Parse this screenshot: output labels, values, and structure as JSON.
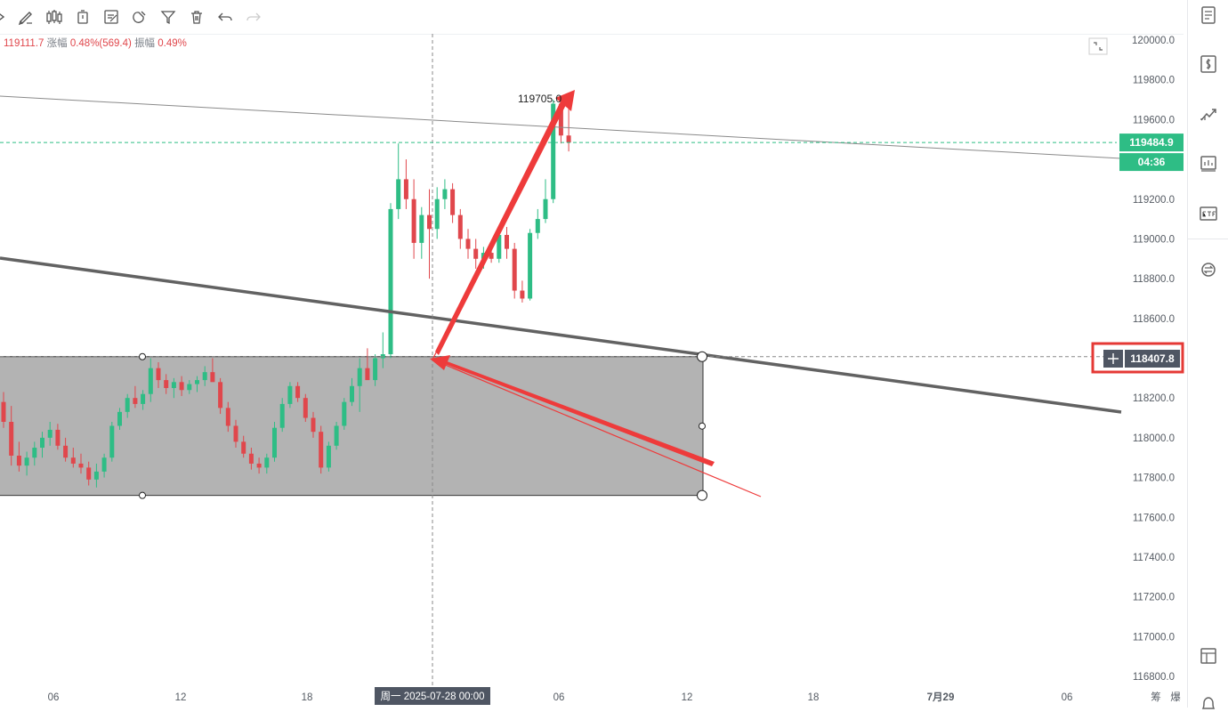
{
  "toolbar": {
    "tools": [
      "cursor-tool-icon",
      "pencil-icon",
      "candlestick-icon",
      "timer-icon",
      "edit-note-icon",
      "magnet-icon",
      "filter-icon",
      "trash-icon",
      "undo-icon",
      "redo-icon"
    ]
  },
  "infoline": {
    "close": "119111.7",
    "change_label": "涨幅",
    "change_value": "0.48%(569.4)",
    "amplitude_label": "振幅",
    "amplitude_value": "0.49%"
  },
  "colors": {
    "up": "#2ebd85",
    "down": "#e0474c",
    "accent_box": "#e53935"
  },
  "chart_data": {
    "type": "candlestick",
    "y_ticks": [
      "120000.0",
      "119800.0",
      "119600.0",
      "119400.0",
      "119200.0",
      "119000.0",
      "118800.0",
      "118600.0",
      "118400.0",
      "118200.0",
      "118000.0",
      "117800.0",
      "117600.0",
      "117400.0",
      "117200.0",
      "117000.0",
      "116800.0"
    ],
    "x_ticks": [
      "06",
      "12",
      "18",
      "06",
      "12",
      "18",
      "7月29",
      "06"
    ],
    "ylim": [
      116750,
      120050
    ],
    "crosshair_time_label": "周一 2025-07-28 00:00",
    "current_price": "119484.9",
    "countdown": "04:36",
    "crosshair_price": "118407.8",
    "high_annotation": "119705.0",
    "extra_axis_chars": [
      "筹",
      "爆"
    ],
    "zone_box": {
      "top": 118407.8,
      "bottom": 117710
    },
    "candles": [
      {
        "o": 118180,
        "h": 118230,
        "l": 118050,
        "c": 118080
      },
      {
        "o": 118080,
        "h": 118160,
        "l": 117860,
        "c": 117910
      },
      {
        "o": 117910,
        "h": 117980,
        "l": 117830,
        "c": 117860
      },
      {
        "o": 117860,
        "h": 117930,
        "l": 117810,
        "c": 117900
      },
      {
        "o": 117900,
        "h": 117980,
        "l": 117860,
        "c": 117950
      },
      {
        "o": 117950,
        "h": 118030,
        "l": 117900,
        "c": 118000
      },
      {
        "o": 118000,
        "h": 118080,
        "l": 117960,
        "c": 118040
      },
      {
        "o": 118040,
        "h": 118070,
        "l": 117940,
        "c": 117960
      },
      {
        "o": 117960,
        "h": 118000,
        "l": 117880,
        "c": 117900
      },
      {
        "o": 117900,
        "h": 117950,
        "l": 117850,
        "c": 117870
      },
      {
        "o": 117870,
        "h": 117920,
        "l": 117820,
        "c": 117850
      },
      {
        "o": 117850,
        "h": 117880,
        "l": 117760,
        "c": 117790
      },
      {
        "o": 117790,
        "h": 117870,
        "l": 117750,
        "c": 117830
      },
      {
        "o": 117830,
        "h": 117920,
        "l": 117800,
        "c": 117900
      },
      {
        "o": 117900,
        "h": 118080,
        "l": 117880,
        "c": 118060
      },
      {
        "o": 118060,
        "h": 118150,
        "l": 118040,
        "c": 118130
      },
      {
        "o": 118130,
        "h": 118220,
        "l": 118100,
        "c": 118200
      },
      {
        "o": 118200,
        "h": 118260,
        "l": 118150,
        "c": 118170
      },
      {
        "o": 118170,
        "h": 118240,
        "l": 118140,
        "c": 118220
      },
      {
        "o": 118220,
        "h": 118400,
        "l": 118180,
        "c": 118350
      },
      {
        "o": 118350,
        "h": 118380,
        "l": 118250,
        "c": 118290
      },
      {
        "o": 118290,
        "h": 118320,
        "l": 118220,
        "c": 118250
      },
      {
        "o": 118250,
        "h": 118300,
        "l": 118200,
        "c": 118280
      },
      {
        "o": 118280,
        "h": 118310,
        "l": 118210,
        "c": 118240
      },
      {
        "o": 118240,
        "h": 118290,
        "l": 118220,
        "c": 118270
      },
      {
        "o": 118270,
        "h": 118310,
        "l": 118230,
        "c": 118290
      },
      {
        "o": 118290,
        "h": 118360,
        "l": 118260,
        "c": 118330
      },
      {
        "o": 118330,
        "h": 118400,
        "l": 118300,
        "c": 118280
      },
      {
        "o": 118280,
        "h": 118300,
        "l": 118120,
        "c": 118150
      },
      {
        "o": 118150,
        "h": 118180,
        "l": 118030,
        "c": 118060
      },
      {
        "o": 118060,
        "h": 118090,
        "l": 117950,
        "c": 117980
      },
      {
        "o": 117980,
        "h": 118010,
        "l": 117900,
        "c": 117920
      },
      {
        "o": 117920,
        "h": 117950,
        "l": 117840,
        "c": 117870
      },
      {
        "o": 117870,
        "h": 117900,
        "l": 117820,
        "c": 117850
      },
      {
        "o": 117850,
        "h": 117920,
        "l": 117820,
        "c": 117900
      },
      {
        "o": 117900,
        "h": 118080,
        "l": 117880,
        "c": 118050
      },
      {
        "o": 118050,
        "h": 118200,
        "l": 118030,
        "c": 118170
      },
      {
        "o": 118170,
        "h": 118280,
        "l": 118150,
        "c": 118260
      },
      {
        "o": 118260,
        "h": 118280,
        "l": 118180,
        "c": 118200
      },
      {
        "o": 118200,
        "h": 118220,
        "l": 118080,
        "c": 118100
      },
      {
        "o": 118100,
        "h": 118130,
        "l": 118000,
        "c": 118030
      },
      {
        "o": 118030,
        "h": 118060,
        "l": 117820,
        "c": 117850
      },
      {
        "o": 117850,
        "h": 117980,
        "l": 117830,
        "c": 117960
      },
      {
        "o": 117960,
        "h": 118080,
        "l": 117940,
        "c": 118060
      },
      {
        "o": 118060,
        "h": 118200,
        "l": 118040,
        "c": 118180
      },
      {
        "o": 118180,
        "h": 118300,
        "l": 118160,
        "c": 118260
      },
      {
        "o": 118260,
        "h": 118400,
        "l": 118130,
        "c": 118350
      },
      {
        "o": 118350,
        "h": 118450,
        "l": 118300,
        "c": 118290
      },
      {
        "o": 118290,
        "h": 118420,
        "l": 118260,
        "c": 118400
      },
      {
        "o": 118400,
        "h": 118530,
        "l": 118350,
        "c": 118420
      },
      {
        "o": 118420,
        "h": 119180,
        "l": 118400,
        "c": 119150
      },
      {
        "o": 119150,
        "h": 119480,
        "l": 119100,
        "c": 119300
      },
      {
        "o": 119300,
        "h": 119400,
        "l": 119150,
        "c": 119200
      },
      {
        "o": 119200,
        "h": 119300,
        "l": 118900,
        "c": 118980
      },
      {
        "o": 118980,
        "h": 119160,
        "l": 118900,
        "c": 119120
      },
      {
        "o": 119120,
        "h": 119250,
        "l": 118800,
        "c": 119050
      },
      {
        "o": 119050,
        "h": 119260,
        "l": 119000,
        "c": 119200
      },
      {
        "o": 119200,
        "h": 119300,
        "l": 119150,
        "c": 119250
      },
      {
        "o": 119250,
        "h": 119280,
        "l": 119080,
        "c": 119120
      },
      {
        "o": 119120,
        "h": 119150,
        "l": 118950,
        "c": 119000
      },
      {
        "o": 119000,
        "h": 119050,
        "l": 118900,
        "c": 118950
      },
      {
        "o": 118950,
        "h": 119000,
        "l": 118850,
        "c": 118900
      },
      {
        "o": 118900,
        "h": 118960,
        "l": 118850,
        "c": 118930
      },
      {
        "o": 118930,
        "h": 118980,
        "l": 118880,
        "c": 118900
      },
      {
        "o": 118900,
        "h": 119050,
        "l": 118880,
        "c": 119020
      },
      {
        "o": 119020,
        "h": 119060,
        "l": 118900,
        "c": 118950
      },
      {
        "o": 118950,
        "h": 118980,
        "l": 118700,
        "c": 118740
      },
      {
        "o": 118740,
        "h": 118790,
        "l": 118680,
        "c": 118700
      },
      {
        "o": 118700,
        "h": 119050,
        "l": 118690,
        "c": 119030
      },
      {
        "o": 119030,
        "h": 119150,
        "l": 119000,
        "c": 119100
      },
      {
        "o": 119100,
        "h": 119300,
        "l": 119080,
        "c": 119200
      },
      {
        "o": 119200,
        "h": 119700,
        "l": 119180,
        "c": 119680
      },
      {
        "o": 119680,
        "h": 119705,
        "l": 119480,
        "c": 119520
      },
      {
        "o": 119520,
        "h": 119720,
        "l": 119440,
        "c": 119484.9
      }
    ]
  }
}
